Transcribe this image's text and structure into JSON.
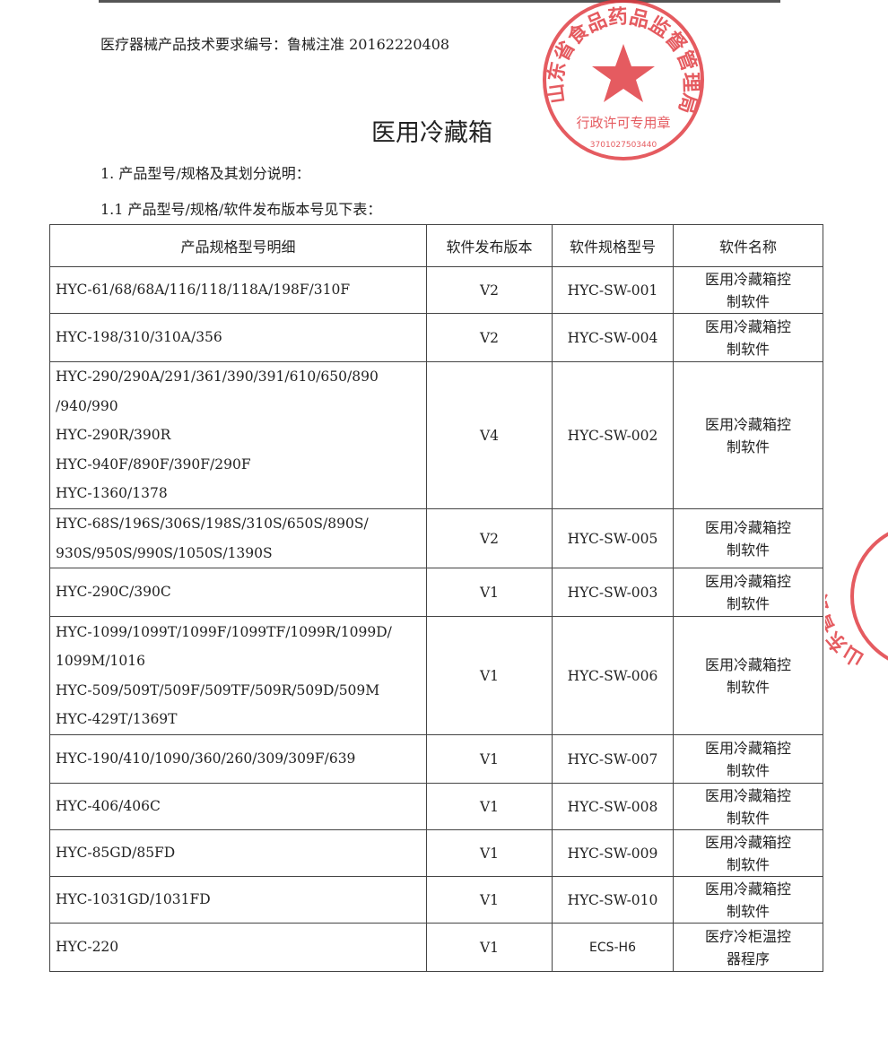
{
  "header": {
    "doc_number": "医疗器械产品技术要求编号：鲁械注准 20162220408",
    "title": "医用冷藏箱",
    "section_1": "1. 产品型号/规格及其划分说明：",
    "section_1_1": "1.1 产品型号/规格/软件发布版本号见下表："
  },
  "table": {
    "headers": [
      "产品规格型号明细",
      "软件发布版本",
      "软件规格型号",
      "软件名称"
    ],
    "rows": [
      {
        "models": [
          "HYC-61/68/68A/116/118/118A/198F/310F"
        ],
        "version": "V2",
        "spec": "HYC-SW-001",
        "name": "医用冷藏箱控制软件"
      },
      {
        "models": [
          "HYC-198/310/310A/356"
        ],
        "version": "V2",
        "spec": "HYC-SW-004",
        "name": "医用冷藏箱控制软件"
      },
      {
        "models": [
          "HYC-290/290A/291/361/390/391/610/650/890",
          "/940/990",
          "HYC-290R/390R",
          "HYC-940F/890F/390F/290F",
          "HYC-1360/1378"
        ],
        "version": "V4",
        "spec": "HYC-SW-002",
        "name": "医用冷藏箱控制软件"
      },
      {
        "models": [
          "HYC-68S/196S/306S/198S/310S/650S/890S/",
          "930S/950S/990S/1050S/1390S"
        ],
        "version": "V2",
        "spec": "HYC-SW-005",
        "name": "医用冷藏箱控制软件"
      },
      {
        "models": [
          "HYC-290C/390C"
        ],
        "version": "V1",
        "spec": "HYC-SW-003",
        "name": "医用冷藏箱控制软件"
      },
      {
        "models": [
          "HYC-1099/1099T/1099F/1099TF/1099R/1099D/",
          "1099M/1016",
          "HYC-509/509T/509F/509TF/509R/509D/509M",
          "HYC-429T/1369T"
        ],
        "version": "V1",
        "spec": "HYC-SW-006",
        "name": "医用冷藏箱控制软件"
      },
      {
        "models": [
          "HYC-190/410/1090/360/260/309/309F/639"
        ],
        "version": "V1",
        "spec": "HYC-SW-007",
        "name": "医用冷藏箱控制软件"
      },
      {
        "models": [
          "HYC-406/406C"
        ],
        "version": "V1",
        "spec": "HYC-SW-008",
        "name": "医用冷藏箱控制软件"
      },
      {
        "models": [
          "HYC-85GD/85FD"
        ],
        "version": "V1",
        "spec": "HYC-SW-009",
        "name": "医用冷藏箱控制软件"
      },
      {
        "models": [
          "HYC-1031GD/1031FD"
        ],
        "version": "V1",
        "spec": "HYC-SW-010",
        "name": "医用冷藏箱控制软件"
      },
      {
        "models": [
          "HYC-220"
        ],
        "version": "V1",
        "spec": "ECS-H6",
        "name": "医疗冷柜温控器程序"
      }
    ]
  },
  "stamp": {
    "color": "#e0383e",
    "outer_text": "山东省食品药品监督管理局",
    "inner_text": "行政许可专用章",
    "code": "3701027503440",
    "partial_text": "山东省食"
  }
}
